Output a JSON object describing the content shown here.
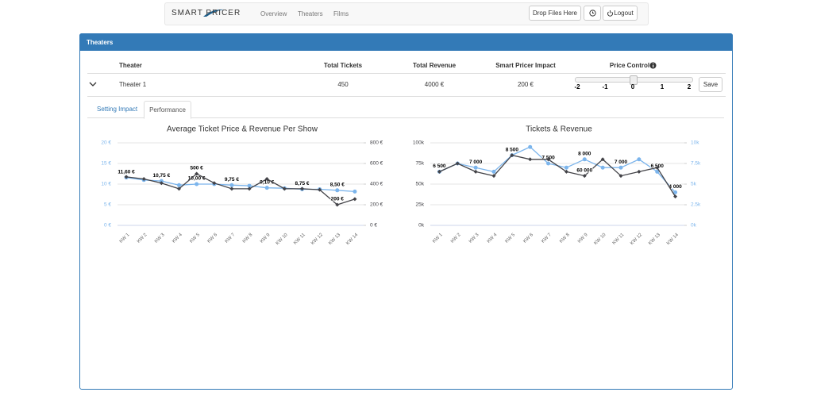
{
  "navbar": {
    "logo": "SMART PRICER",
    "links": [
      "Overview",
      "Theaters",
      "Films"
    ],
    "drop_button": "Drop Files Here",
    "logout_button": "Logout"
  },
  "panel": {
    "title": "Theaters",
    "table": {
      "headers": [
        "Theater",
        "Total Tickets",
        "Total Revenue",
        "Smart Pricer Impact",
        "Price Control"
      ],
      "rows": [
        [
          "Theater 1",
          450,
          "4000 €",
          "200 €"
        ]
      ]
    },
    "slider_labels": [
      -2,
      -1,
      0,
      1,
      2
    ],
    "save_button": "Save",
    "tabs": [
      "Setting Impact",
      "Performance"
    ]
  },
  "chart_data": [
    {
      "type": "line",
      "title": "Average Ticket Price & Revenue Per Show",
      "categories": [
        "KW 1",
        "KW 2",
        "KW 3",
        "KW 4",
        "KW 5",
        "KW 6",
        "KW 7",
        "KW 8",
        "KW 9",
        "KW 10",
        "KW 11",
        "KW 12",
        "KW 13",
        "KW 14"
      ],
      "ylim": [
        0,
        20
      ],
      "yticks": [
        {
          "value": 0,
          "label": "0 €"
        },
        {
          "value": 5,
          "label": "5 €"
        },
        {
          "value": 10,
          "label": "10 €"
        },
        {
          "value": 15,
          "label": "15 €"
        },
        {
          "value": 20,
          "label": "20 €"
        }
      ],
      "y2lim": [
        0,
        800
      ],
      "y2ticks": [
        {
          "value": 0,
          "label": "0 €"
        },
        {
          "value": 200,
          "label": "200 €"
        },
        {
          "value": 400,
          "label": "400 €"
        },
        {
          "value": 600,
          "label": "600 €"
        },
        {
          "value": 800,
          "label": "800 €"
        }
      ],
      "grid": true,
      "series": [
        {
          "color": "#7cb5ec",
          "values": [
            11.6,
            11,
            10.75,
            9.75,
            10,
            10,
            9.75,
            9.6,
            9.1,
            9,
            8.75,
            8.75,
            8.5,
            8.2
          ],
          "value_labels": [
            "11,60 €",
            null,
            "10,75 €",
            null,
            "10,00 €",
            null,
            "9,75 €",
            null,
            "9,10 €",
            null,
            "8,75 €",
            null,
            "8,50 €",
            null
          ]
        },
        {
          "color": "#434348",
          "axis": "y2",
          "values": [
            470,
            450,
            410,
            355,
            500,
            410,
            355,
            355,
            450,
            355,
            355,
            345,
            200,
            255
          ],
          "value_labels": [
            null,
            null,
            null,
            null,
            "500 €",
            null,
            null,
            null,
            null,
            null,
            null,
            null,
            "200 €",
            null
          ]
        }
      ]
    },
    {
      "type": "line",
      "title": "Tickets & Revenue",
      "categories": [
        "KW 1",
        "KW 2",
        "KW 3",
        "KW 4",
        "KW 5",
        "KW 6",
        "KW 7",
        "KW 8",
        "KW 9",
        "KW 10",
        "KW 11",
        "KW 12",
        "KW 13",
        "KW 14"
      ],
      "ylim": [
        0,
        100000
      ],
      "yticks": [
        {
          "value": 0,
          "label": "0k"
        },
        {
          "value": 25000,
          "label": "25k"
        },
        {
          "value": 50000,
          "label": "50k"
        },
        {
          "value": 75000,
          "label": "75k"
        },
        {
          "value": 100000,
          "label": "100k"
        }
      ],
      "y2lim": [
        0,
        10000
      ],
      "y2ticks": [
        {
          "value": 0,
          "label": "0k"
        },
        {
          "value": 2500,
          "label": "2.5k"
        },
        {
          "value": 5000,
          "label": "5k"
        },
        {
          "value": 7500,
          "label": "7.5k"
        },
        {
          "value": 10000,
          "label": "10k"
        }
      ],
      "grid": true,
      "series": [
        {
          "color": "#7cb5ec",
          "axis": "y2",
          "values": [
            6500,
            7500,
            7000,
            6500,
            8500,
            9500,
            7500,
            7000,
            8000,
            7000,
            7000,
            8000,
            6500,
            4000
          ],
          "value_labels": [
            "6 500",
            null,
            "7 000",
            null,
            "8 500",
            null,
            "7 500",
            null,
            "8 000",
            null,
            "7 000",
            null,
            "6 500",
            "4 000"
          ]
        },
        {
          "color": "#434348",
          "values": [
            65000,
            75000,
            65000,
            60000,
            85000,
            80000,
            80000,
            65000,
            60000,
            80000,
            60000,
            65000,
            70000,
            35000
          ],
          "value_labels": [
            null,
            null,
            null,
            null,
            null,
            null,
            null,
            null,
            "60 000",
            null,
            null,
            null,
            null,
            null
          ]
        }
      ]
    }
  ]
}
